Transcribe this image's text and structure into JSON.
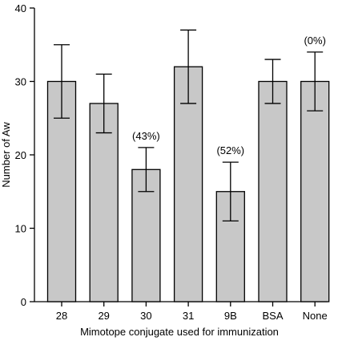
{
  "chart_data": {
    "type": "bar",
    "title": "",
    "xlabel": "Mimotope conjugate used for immunization",
    "ylabel": "Number of Aw",
    "categories": [
      "28",
      "29",
      "30",
      "31",
      "9B",
      "BSA",
      "None"
    ],
    "values": [
      30,
      27,
      18,
      32,
      15,
      30,
      30
    ],
    "error_low": [
      25,
      23,
      15,
      27,
      11,
      27,
      26
    ],
    "error_high": [
      35,
      31,
      21,
      37,
      19,
      33,
      34
    ],
    "annotations": [
      {
        "category": "30",
        "text": "(43%)"
      },
      {
        "category": "9B",
        "text": "(52%)"
      },
      {
        "category": "None",
        "text": "(0%)"
      }
    ],
    "ylim": [
      0,
      40
    ],
    "yticks": [
      0,
      10,
      20,
      30,
      40
    ],
    "grid": false,
    "bar_color": "#c8c8c8",
    "edge_color": "#000000"
  }
}
